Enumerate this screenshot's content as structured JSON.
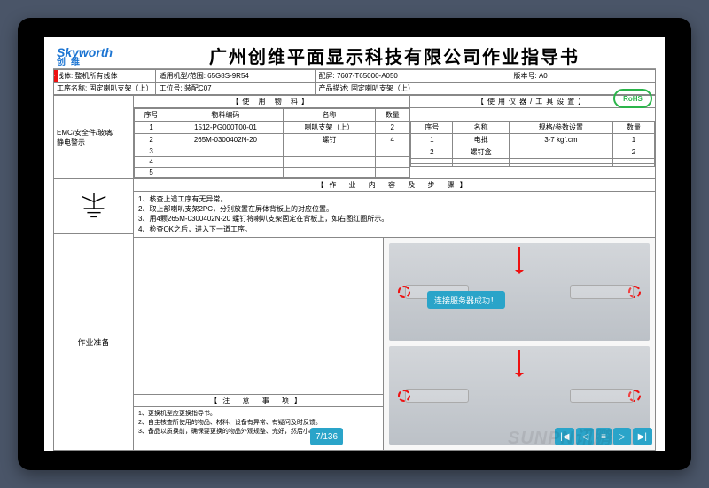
{
  "logo": {
    "en": "Skyworth",
    "cn": "创维"
  },
  "title": "广州创维平面显示科技有限公司作业指导书",
  "meta1": {
    "line_lbl": "线体:",
    "line_val": "整机所有线体",
    "model_lbl": "适用机型/范围:",
    "model_val": "65G8S-9R54",
    "bom_lbl": "配屏:",
    "bom_val": "7607-T65000-A050",
    "ver_lbl": "版本号:",
    "ver_val": "A0"
  },
  "meta2": {
    "proc_lbl": "工序名称:",
    "proc_val": "固定喇叭支架（上）",
    "station_lbl": "工位号:",
    "station_val": "装配C07",
    "prod_lbl": "产品描述:",
    "prod_val": "固定喇叭支架（上）"
  },
  "sections": {
    "safety_lbl": "EMC/安全件/玻璃/",
    "esd_lbl": "静电警示",
    "materials_title": "【使 用 物 料】",
    "tools_title": "【使用仪器/工具设置】",
    "steps_title": "【作 业 内 容 及 步 骤】",
    "notes_title": "【注 意 事 项】",
    "prep_label": "作业准备"
  },
  "materials": {
    "cols": [
      "序号",
      "物料编码",
      "名称",
      "数量"
    ],
    "rows": [
      [
        "1",
        "1512-PG000T00-01",
        "喇叭支架（上）",
        "2"
      ],
      [
        "2",
        "265M-0300402N-20",
        "螺钉",
        "4"
      ],
      [
        "3",
        "",
        "",
        ""
      ],
      [
        "4",
        "",
        "",
        ""
      ],
      [
        "5",
        "",
        "",
        ""
      ]
    ]
  },
  "tools": {
    "cols": [
      "序号",
      "名称",
      "规格/参数设置",
      "数量"
    ],
    "rows": [
      [
        "1",
        "电批",
        "3-7 kgf.cm",
        "1"
      ],
      [
        "2",
        "螺钉盒",
        "",
        "2"
      ],
      [
        "",
        "",
        "",
        ""
      ],
      [
        "",
        "",
        "",
        ""
      ],
      [
        "",
        "",
        "",
        ""
      ]
    ]
  },
  "steps": [
    "1、核查上道工序有无异常。",
    "2、取上部喇叭支架2PC，分别放置在屏体背板上的对应位置。",
    "3、用4颗265M-0300402N-20 螺钉将喇叭支架固定在背板上，如右图红圈所示。",
    "4、检查OK之后，进入下一道工序。"
  ],
  "notes": [
    "1、更换机型应更换指导书。",
    "2、自主核查所使用的物品、材料、设备有异常、有疑问及时反馈。",
    "3、备品以质换前，确保要更换的物品外观规整、完好，然后小心更换。"
  ],
  "toast": "连接服务器成功！",
  "page": "7/136",
  "rohs": "RoHS",
  "nav_icons": [
    "first",
    "prev",
    "list",
    "next",
    "last"
  ],
  "watermark": "SUNPN讯鹏",
  "colors": {
    "accent": "#2aa4c9",
    "border": "#888888",
    "logo": "#1b74d2",
    "alert": "#e11",
    "rohs": "#2ab54a"
  }
}
